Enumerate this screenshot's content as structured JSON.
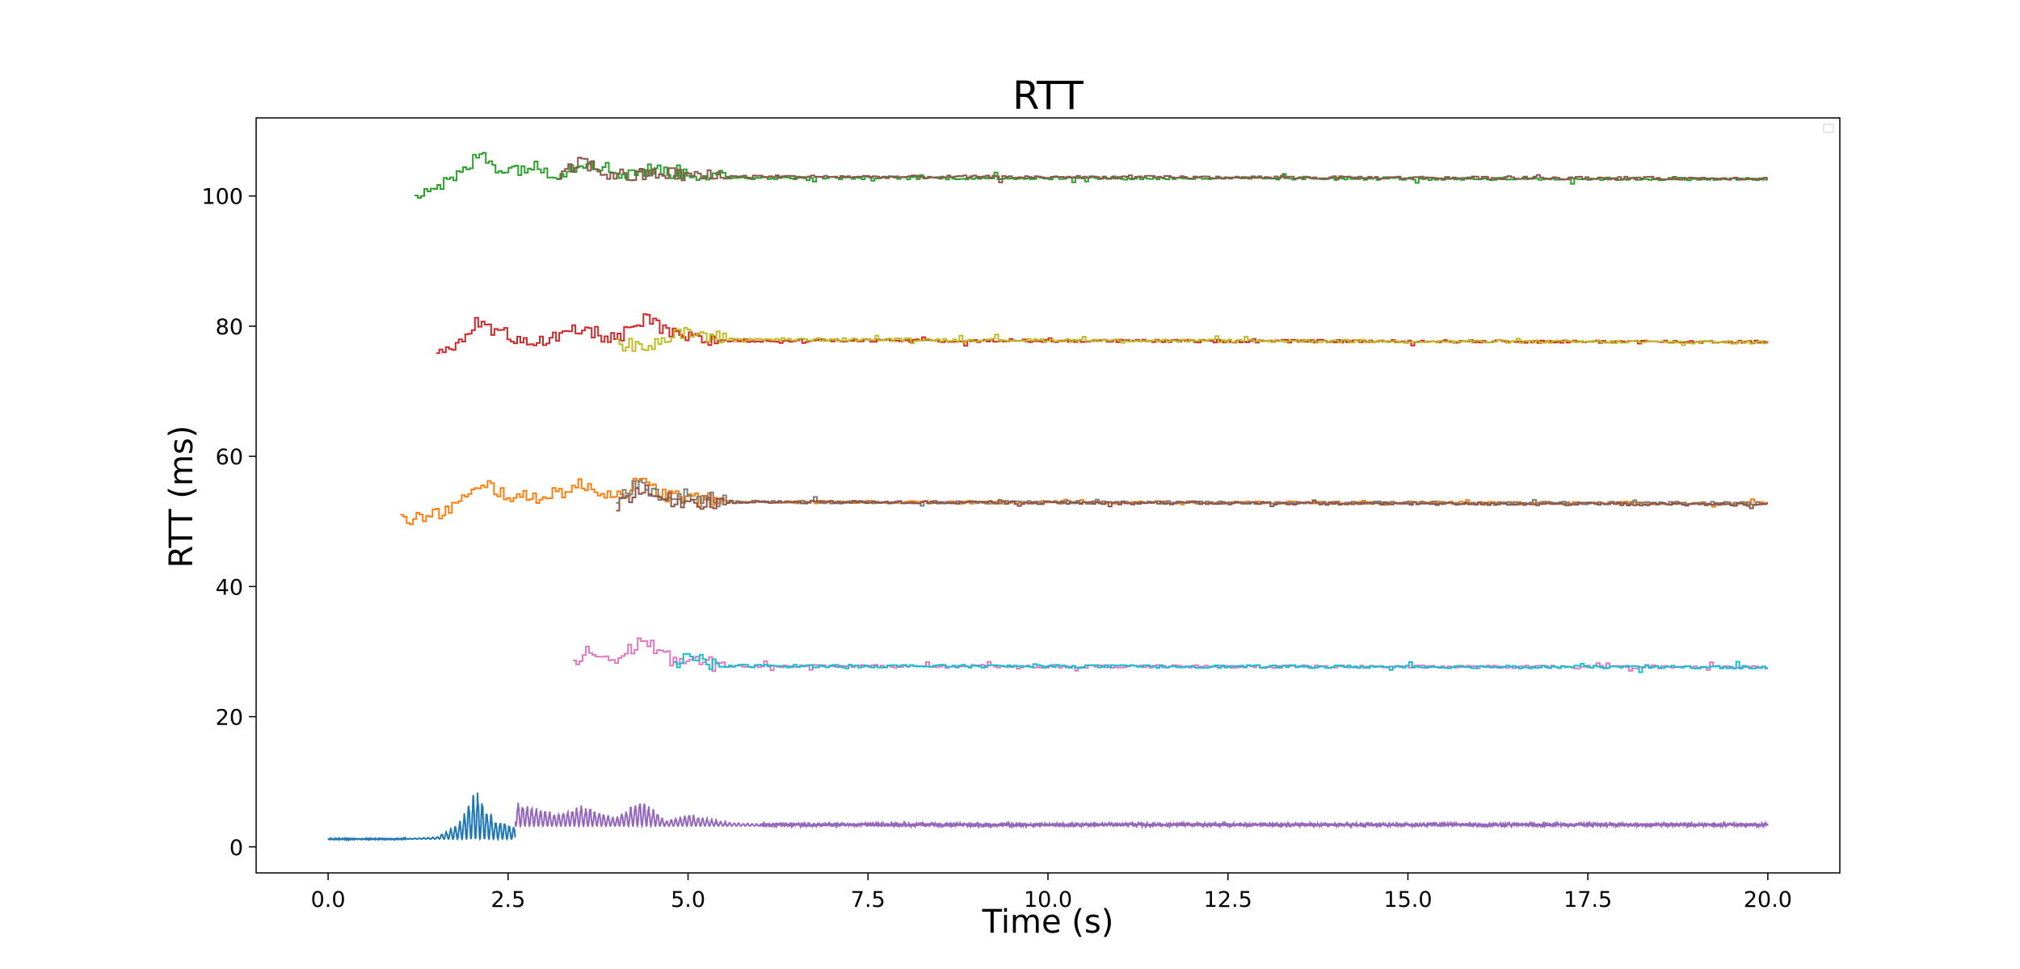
{
  "chart_data": {
    "type": "line",
    "title": "RTT",
    "xlabel": "Time (s)",
    "ylabel": "RTT (ms)",
    "xlim": [
      -1,
      21
    ],
    "ylim": [
      -4,
      112
    ],
    "xticks": [
      0.0,
      2.5,
      5.0,
      7.5,
      10.0,
      12.5,
      15.0,
      17.5,
      20.0
    ],
    "xtick_labels": [
      "0.0",
      "2.5",
      "5.0",
      "7.5",
      "10.0",
      "12.5",
      "15.0",
      "17.5",
      "20.0"
    ],
    "yticks": [
      0,
      20,
      40,
      60,
      80,
      100
    ],
    "ytick_labels": [
      "0",
      "20",
      "40",
      "60",
      "80",
      "100"
    ],
    "grid": false,
    "legend": "top-right",
    "series": [
      {
        "color": "#1f77b4",
        "style": "oscillating",
        "start": 0.0,
        "end": 2.6,
        "base": 1.2,
        "steady": 1.2,
        "points": [
          [
            0.0,
            1.2
          ],
          [
            1.0,
            1.2
          ],
          [
            1.5,
            1.5
          ],
          [
            1.8,
            3.5
          ],
          [
            2.05,
            9.0
          ],
          [
            2.3,
            4.5
          ],
          [
            2.6,
            3.0
          ]
        ]
      },
      {
        "color": "#9467bd",
        "style": "oscillating",
        "start": 2.6,
        "end": 20.0,
        "base": 3.2,
        "steady": 3.4,
        "points": [
          [
            2.6,
            7.0
          ],
          [
            3.2,
            5.0
          ],
          [
            3.5,
            6.5
          ],
          [
            4.0,
            4.5
          ],
          [
            4.35,
            7.5
          ],
          [
            4.7,
            4.0
          ],
          [
            5.0,
            5.0
          ],
          [
            5.5,
            3.8
          ],
          [
            6.0,
            3.5
          ],
          [
            20.0,
            3.4
          ]
        ]
      },
      {
        "color": "#e377c2",
        "style": "step",
        "start": 3.4,
        "end": 20.0,
        "base": 27.5,
        "steady": 27.6,
        "points": [
          [
            3.4,
            28.0
          ],
          [
            3.6,
            30.0
          ],
          [
            4.0,
            28.5
          ],
          [
            4.35,
            32.0
          ],
          [
            4.7,
            29.0
          ],
          [
            5.0,
            28.5
          ],
          [
            5.5,
            27.8
          ],
          [
            20.0,
            27.6
          ]
        ]
      },
      {
        "color": "#17becf",
        "style": "step",
        "start": 4.8,
        "end": 20.0,
        "base": 27.6,
        "steady": 27.6,
        "points": [
          [
            4.8,
            27.5
          ],
          [
            4.95,
            30.0
          ],
          [
            5.2,
            28.2
          ],
          [
            5.5,
            27.8
          ],
          [
            20.0,
            27.6
          ]
        ]
      },
      {
        "color": "#ff7f0e",
        "style": "step",
        "start": 1.0,
        "end": 20.0,
        "base": 50.5,
        "steady": 52.8,
        "points": [
          [
            1.0,
            50.2
          ],
          [
            1.5,
            51.0
          ],
          [
            1.8,
            53.0
          ],
          [
            2.2,
            55.5
          ],
          [
            2.6,
            53.5
          ],
          [
            3.0,
            54.0
          ],
          [
            3.5,
            55.5
          ],
          [
            4.0,
            54.0
          ],
          [
            4.3,
            56.0
          ],
          [
            4.7,
            54.0
          ],
          [
            5.0,
            53.5
          ],
          [
            5.5,
            53.0
          ],
          [
            20.0,
            52.8
          ]
        ]
      },
      {
        "color": "#7f7f7f",
        "style": "step",
        "start": 4.0,
        "end": 20.0,
        "base": 52.8,
        "steady": 52.8,
        "points": [
          [
            4.0,
            53.0
          ],
          [
            4.3,
            56.5
          ],
          [
            4.6,
            53.5
          ],
          [
            5.0,
            54.0
          ],
          [
            5.5,
            53.0
          ],
          [
            20.0,
            52.8
          ]
        ]
      },
      {
        "color": "#8c564b",
        "style": "step",
        "start": 4.0,
        "end": 20.0,
        "base": 52.8,
        "steady": 52.6,
        "points": [
          [
            4.0,
            52.5
          ],
          [
            4.3,
            55.0
          ],
          [
            4.6,
            53.5
          ],
          [
            5.0,
            53.0
          ],
          [
            20.0,
            52.6
          ]
        ]
      },
      {
        "color": "#d62728",
        "style": "step",
        "start": 1.5,
        "end": 20.0,
        "base": 77.5,
        "steady": 77.6,
        "points": [
          [
            1.5,
            75.8
          ],
          [
            1.8,
            77.0
          ],
          [
            2.0,
            80.5
          ],
          [
            2.5,
            78.5
          ],
          [
            3.0,
            77.5
          ],
          [
            3.5,
            79.5
          ],
          [
            4.0,
            78.0
          ],
          [
            4.4,
            81.0
          ],
          [
            4.8,
            78.5
          ],
          [
            5.2,
            77.8
          ],
          [
            20.0,
            77.6
          ]
        ]
      },
      {
        "color": "#bcbd22",
        "style": "step",
        "start": 4.0,
        "end": 20.0,
        "base": 77.5,
        "steady": 77.5,
        "points": [
          [
            4.0,
            77.0
          ],
          [
            4.5,
            77.5
          ],
          [
            5.0,
            79.0
          ],
          [
            5.5,
            78.0
          ],
          [
            20.0,
            77.5
          ]
        ]
      },
      {
        "color": "#2ca02c",
        "style": "step",
        "start": 1.2,
        "end": 20.0,
        "base": 102.5,
        "steady": 102.6,
        "points": [
          [
            1.2,
            100.5
          ],
          [
            1.5,
            101.5
          ],
          [
            1.8,
            103.0
          ],
          [
            2.1,
            106.5
          ],
          [
            2.4,
            104.0
          ],
          [
            2.8,
            104.5
          ],
          [
            3.2,
            103.5
          ],
          [
            3.6,
            105.5
          ],
          [
            4.0,
            103.5
          ],
          [
            4.5,
            104.0
          ],
          [
            5.0,
            103.5
          ],
          [
            5.5,
            102.8
          ],
          [
            20.0,
            102.6
          ]
        ]
      },
      {
        "color": "#8c564b",
        "style": "step",
        "start": 3.2,
        "end": 20.0,
        "base": 102.8,
        "steady": 102.7,
        "points": [
          [
            3.2,
            102.5
          ],
          [
            3.5,
            105.5
          ],
          [
            3.8,
            103.5
          ],
          [
            4.2,
            103.0
          ],
          [
            4.6,
            103.5
          ],
          [
            5.2,
            103.0
          ],
          [
            20.0,
            102.7
          ]
        ]
      }
    ]
  }
}
